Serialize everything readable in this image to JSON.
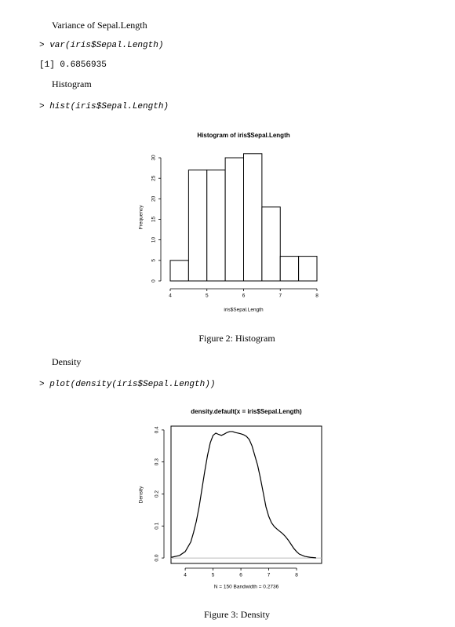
{
  "document": {
    "variance_heading": "Variance of Sepal.Length",
    "variance_code": "> var(iris$Sepal.Length)",
    "variance_output": "[1] 0.6856935",
    "histogram_heading": "Histogram",
    "histogram_code": "> hist(iris$Sepal.Length)",
    "histogram_caption": "Figure 2: Histogram",
    "density_heading": "Density",
    "density_code": "> plot(density(iris$Sepal.Length))",
    "density_caption": "Figure 3: Density"
  },
  "chart_data": [
    {
      "type": "histogram",
      "title": "Histogram of iris$Sepal.Length",
      "x_label": "iris$Sepal.Length",
      "y_label": "Frequency",
      "bins": [
        4.0,
        4.5,
        5.0,
        5.5,
        6.0,
        6.5,
        7.0,
        7.5,
        8.0
      ],
      "values": [
        5,
        27,
        27,
        30,
        31,
        18,
        6,
        6
      ],
      "xlim": [
        4,
        8
      ],
      "xticks": [
        4,
        5,
        6,
        7,
        8
      ],
      "ylim": [
        0,
        31
      ],
      "yticks": [
        0,
        5,
        10,
        15,
        20,
        25,
        30
      ],
      "color": "#ffffff"
    },
    {
      "type": "line",
      "title": "density.default(x = iris$Sepal.Length)",
      "x_label": "N = 150   Bandwidth = 0.2736",
      "y_label": "Density",
      "x": [
        3.5,
        3.8,
        4.0,
        4.2,
        4.3,
        4.4,
        4.5,
        4.6,
        4.7,
        4.8,
        4.9,
        5.0,
        5.1,
        5.2,
        5.3,
        5.4,
        5.5,
        5.6,
        5.7,
        5.8,
        5.9,
        6.0,
        6.1,
        6.2,
        6.3,
        6.4,
        6.5,
        6.6,
        6.7,
        6.8,
        6.9,
        7.0,
        7.1,
        7.2,
        7.3,
        7.4,
        7.5,
        7.6,
        7.7,
        7.8,
        7.9,
        8.0,
        8.1,
        8.3,
        8.5,
        8.7
      ],
      "values": [
        0.002,
        0.008,
        0.02,
        0.05,
        0.08,
        0.115,
        0.16,
        0.215,
        0.27,
        0.32,
        0.36,
        0.383,
        0.39,
        0.386,
        0.383,
        0.387,
        0.392,
        0.395,
        0.395,
        0.392,
        0.39,
        0.388,
        0.385,
        0.38,
        0.37,
        0.35,
        0.32,
        0.29,
        0.25,
        0.205,
        0.16,
        0.13,
        0.11,
        0.098,
        0.09,
        0.083,
        0.076,
        0.067,
        0.056,
        0.043,
        0.03,
        0.02,
        0.012,
        0.005,
        0.002,
        0.0005
      ],
      "xlim": [
        3.49,
        8.9
      ],
      "xticks": [
        4,
        5,
        6,
        7,
        8
      ],
      "ylim": [
        -0.017,
        0.412
      ],
      "yticks": [
        {
          "value": 0,
          "label": "0.0"
        },
        0.1,
        0.2,
        0.3,
        0.4
      ],
      "color": "#000000",
      "zero_line": true
    }
  ]
}
